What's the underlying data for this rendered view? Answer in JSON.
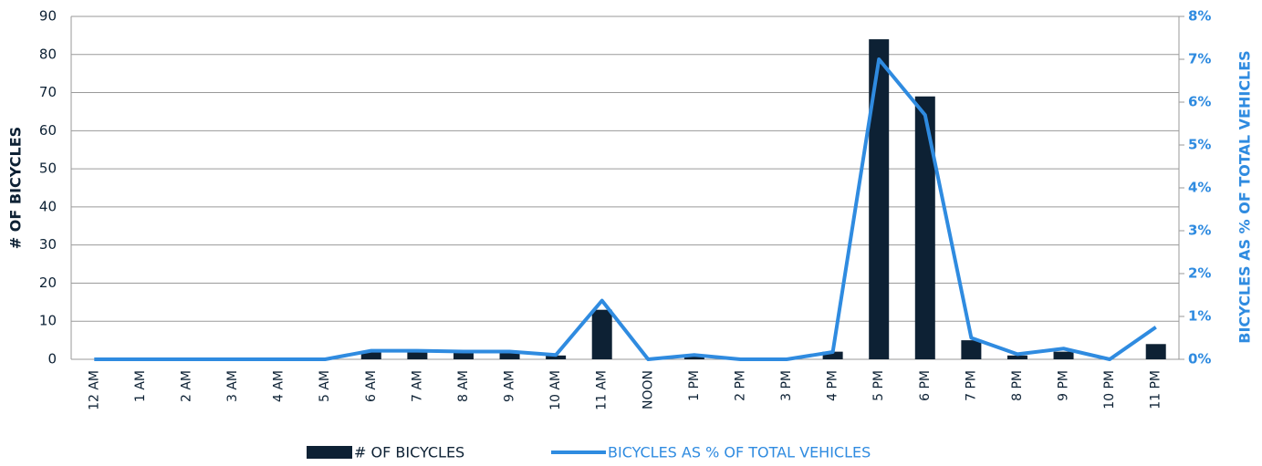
{
  "chart_data": {
    "type": "bar-line",
    "categories": [
      "12 AM",
      "1 AM",
      "2 AM",
      "3 AM",
      "4 AM",
      "5 AM",
      "6 AM",
      "7 AM",
      "8 AM",
      "9 AM",
      "10 AM",
      "11 AM",
      "NOON",
      "1 PM",
      "2 PM",
      "3 PM",
      "4 PM",
      "5 PM",
      "6 PM",
      "7 PM",
      "8 PM",
      "9 PM",
      "10 PM",
      "11 PM"
    ],
    "series": [
      {
        "name": "# OF BICYCLES",
        "type": "bar",
        "color": "#0d2134",
        "values": [
          0,
          0,
          0,
          0,
          0,
          0,
          2,
          2,
          2,
          2,
          1,
          13,
          0,
          1,
          0,
          0,
          2,
          84,
          69,
          5,
          1,
          2,
          0,
          4
        ]
      },
      {
        "name": "BICYCLES AS % OF TOTAL VEHICLES",
        "type": "line",
        "axis": "y2",
        "color": "#2f8be0",
        "values": [
          0,
          0,
          0,
          0,
          0,
          0,
          0.2,
          0.2,
          0.18,
          0.18,
          0.1,
          1.37,
          0,
          0.1,
          0,
          0,
          0.17,
          7.0,
          5.7,
          0.5,
          0.12,
          0.25,
          0,
          0.75
        ]
      }
    ],
    "ylabel": "# OF BICYCLES",
    "y2label": "BICYCLES AS % OF TOTAL VEHICLES",
    "ylim": [
      0,
      90
    ],
    "yticks": [
      0,
      10,
      20,
      30,
      40,
      50,
      60,
      70,
      80,
      90
    ],
    "y2lim": [
      0,
      8
    ],
    "y2ticks": [
      {
        "value": 0,
        "label": "0%"
      },
      {
        "value": 1,
        "label": "1%"
      },
      {
        "value": 2,
        "label": "2%"
      },
      {
        "value": 3,
        "label": "3%"
      },
      {
        "value": 4,
        "label": "4%"
      },
      {
        "value": 5,
        "label": "5%"
      },
      {
        "value": 6,
        "label": "6%"
      },
      {
        "value": 7,
        "label": "7%"
      },
      {
        "value": 8,
        "label": "8%"
      }
    ],
    "grid": true,
    "legend": "bottom"
  }
}
